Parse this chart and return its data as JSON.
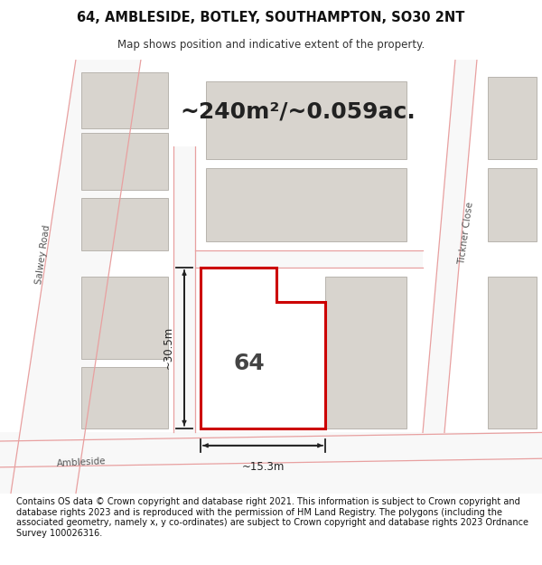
{
  "title": "64, AMBLESIDE, BOTLEY, SOUTHAMPTON, SO30 2NT",
  "subtitle": "Map shows position and indicative extent of the property.",
  "footer": "Contains OS data © Crown copyright and database right 2021. This information is subject to Crown copyright and database rights 2023 and is reproduced with the permission of HM Land Registry. The polygons (including the associated geometry, namely x, y co-ordinates) are subject to Crown copyright and database rights 2023 Ordnance Survey 100026316.",
  "area_text": "~240m²/~0.059ac.",
  "label_text": "64",
  "dim_width": "~15.3m",
  "dim_height": "~30.5m",
  "map_bg": "#ede9e2",
  "road_fill": "#f8f8f8",
  "road_line": "#e8a0a0",
  "building_fill": "#d8d4ce",
  "building_edge": "#b8b4ae",
  "plot_edge": "#cc0000",
  "plot_fill": "#f0ede8",
  "dim_color": "#222222",
  "text_color": "#444444",
  "title_fontsize": 10.5,
  "subtitle_fontsize": 8.5,
  "footer_fontsize": 7.0,
  "area_fontsize": 18,
  "label_fontsize": 18,
  "road_label_fontsize": 7.5
}
